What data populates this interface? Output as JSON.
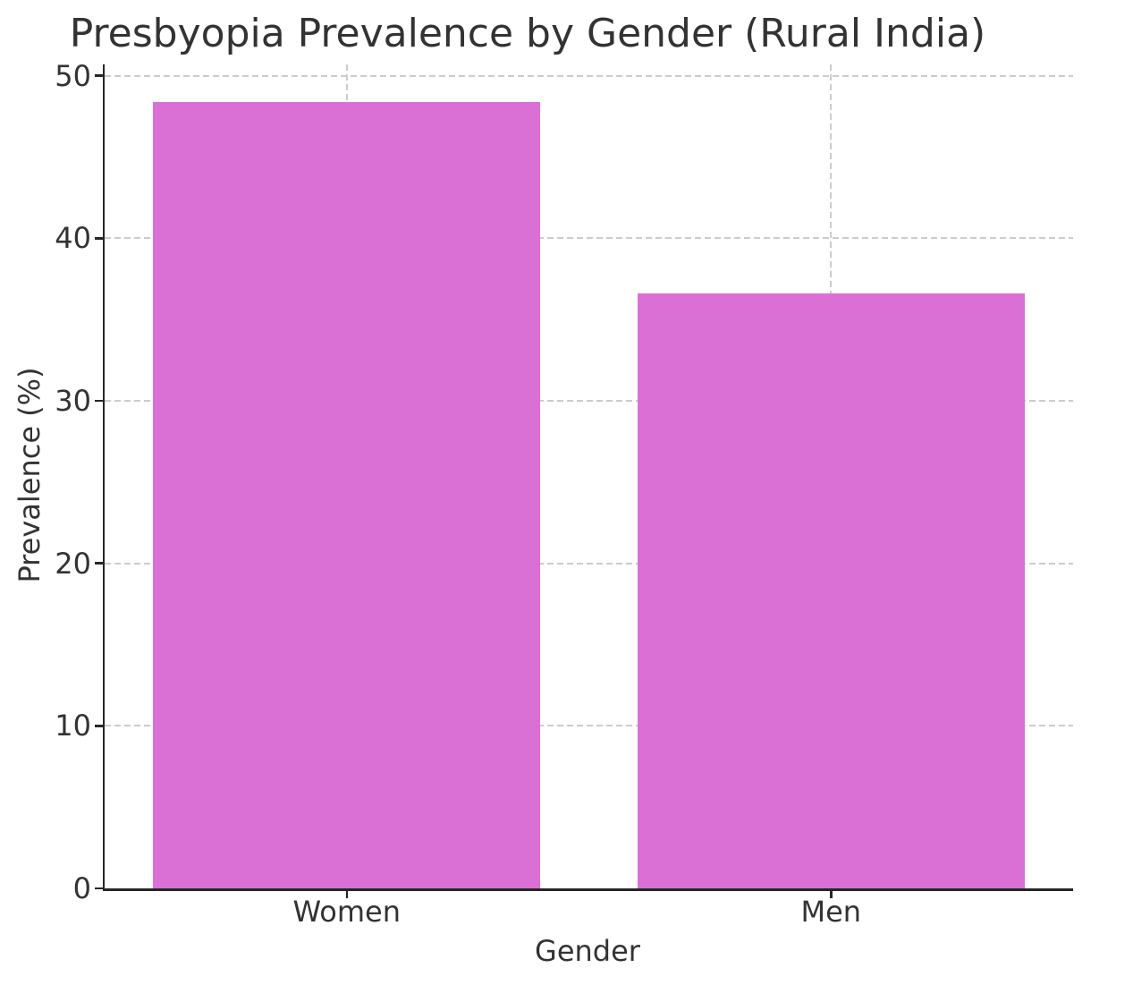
{
  "chart_data": {
    "type": "bar",
    "title": "Presbyopia Prevalence by Gender (Rural India)",
    "categories": [
      "Women",
      "Men"
    ],
    "values": [
      48.4,
      36.6
    ],
    "xlabel": "Gender",
    "ylabel": "Prevalence (%)",
    "ylim": [
      0,
      50.7
    ],
    "yticks": [
      0,
      10,
      20,
      30,
      40,
      50
    ],
    "bar_width_fraction": 0.4,
    "grid": {
      "visible": true,
      "axis": "both",
      "line_style": "dashed"
    },
    "legend": "none",
    "colors": {
      "bar": "#DA70D6",
      "grid": "#cccccc",
      "spine": "#262626",
      "text": "#333333",
      "background": "#ffffff"
    }
  }
}
